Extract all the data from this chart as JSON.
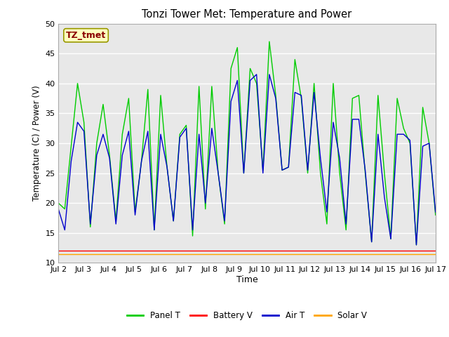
{
  "title": "Tonzi Tower Met: Temperature and Power",
  "xlabel": "Time",
  "ylabel": "Temperature (C) / Power (V)",
  "ylim": [
    10,
    50
  ],
  "xlim": [
    0,
    15
  ],
  "xtick_labels": [
    "Jul 2",
    "Jul 3",
    "Jul 4",
    "Jul 5",
    "Jul 6",
    "Jul 7",
    "Jul 8",
    "Jul 9",
    "Jul 10",
    "Jul 11",
    "Jul 12",
    "Jul 13",
    "Jul 14",
    "Jul 15",
    "Jul 16",
    "Jul 17"
  ],
  "annotation_text": "TZ_tmet",
  "annotation_color": "#8B0000",
  "annotation_bg": "#FFFFC0",
  "bg_color": "#E8E8E8",
  "panel_t_color": "#00CC00",
  "battery_v_color": "#FF0000",
  "air_t_color": "#0000CC",
  "solar_v_color": "#FFA500",
  "legend_labels": [
    "Panel T",
    "Battery V",
    "Air T",
    "Solar V"
  ],
  "panel_t": [
    20.0,
    19.0,
    29.5,
    40.0,
    33.5,
    16.0,
    30.0,
    36.5,
    28.0,
    17.0,
    31.5,
    37.5,
    18.5,
    27.0,
    39.0,
    15.5,
    38.0,
    26.0,
    17.0,
    31.5,
    33.0,
    14.5,
    39.5,
    19.0,
    39.5,
    25.0,
    16.5,
    42.5,
    46.0,
    25.0,
    42.5,
    40.0,
    25.5,
    47.0,
    38.0,
    25.5,
    26.0,
    44.0,
    37.5,
    25.0,
    40.0,
    25.0,
    16.5,
    40.0,
    25.0,
    15.5,
    37.5,
    38.0,
    25.0,
    13.5,
    38.0,
    25.0,
    14.0,
    37.5,
    32.5,
    30.0,
    13.0,
    36.0,
    30.0,
    18.0
  ],
  "battery_v": [
    12.1,
    12.1,
    12.1,
    12.1,
    12.1,
    12.1,
    12.1,
    12.1,
    12.1,
    12.1,
    12.1,
    12.1,
    12.1,
    12.1,
    12.1,
    12.1,
    12.1,
    12.1,
    12.1,
    12.1,
    12.1,
    12.1,
    12.1,
    12.1,
    12.1,
    12.1,
    12.1,
    12.1,
    12.1,
    12.1,
    12.1,
    12.1,
    12.1,
    12.1,
    12.1,
    12.1,
    12.1,
    12.1,
    12.1,
    12.1,
    12.1,
    12.1,
    12.1,
    12.1,
    12.1,
    12.1,
    12.1,
    12.1,
    12.1,
    12.1,
    12.1,
    12.1,
    12.1,
    12.1,
    12.1,
    12.1,
    12.1,
    12.1,
    12.1,
    12.1
  ],
  "air_t": [
    19.0,
    15.5,
    27.0,
    33.5,
    32.0,
    16.5,
    28.0,
    31.5,
    27.5,
    16.5,
    28.0,
    32.0,
    18.0,
    27.0,
    32.0,
    15.5,
    31.5,
    26.0,
    17.0,
    31.0,
    32.5,
    15.5,
    31.5,
    20.0,
    32.5,
    25.0,
    17.0,
    37.0,
    40.5,
    25.0,
    40.5,
    41.5,
    25.0,
    41.5,
    37.5,
    25.5,
    26.0,
    38.5,
    38.0,
    25.5,
    38.5,
    27.5,
    18.5,
    33.5,
    27.5,
    16.5,
    34.0,
    34.0,
    25.5,
    13.5,
    31.5,
    21.0,
    14.0,
    31.5,
    31.5,
    30.5,
    13.0,
    29.5,
    30.0,
    18.5
  ],
  "solar_v": [
    11.5,
    11.5,
    11.5,
    11.5,
    11.5,
    11.5,
    11.5,
    11.5,
    11.5,
    11.5,
    11.5,
    11.5,
    11.5,
    11.5,
    11.5,
    11.5,
    11.5,
    11.5,
    11.5,
    11.5,
    11.5,
    11.5,
    11.5,
    11.5,
    11.5,
    11.5,
    11.5,
    11.5,
    11.5,
    11.5,
    11.5,
    11.5,
    11.5,
    11.5,
    11.5,
    11.5,
    11.5,
    11.5,
    11.5,
    11.5,
    11.5,
    11.5,
    11.5,
    11.5,
    11.5,
    11.5,
    11.5,
    11.5,
    11.5,
    11.5,
    11.5,
    11.5,
    11.5,
    11.5,
    11.5,
    11.5,
    11.5,
    11.5,
    11.5,
    11.5
  ]
}
